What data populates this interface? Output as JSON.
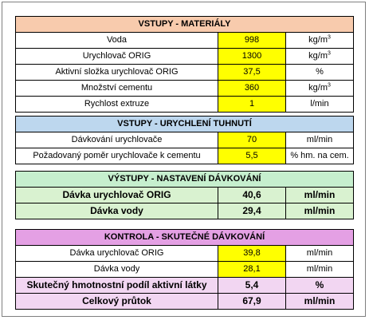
{
  "colors": {
    "vstupy_materialy_header": "#f8cbad",
    "vstupy_urychleni_header": "#bdd7ee",
    "vystupy_header": "#c6efce",
    "vystupy_rows": "#d9f2d0",
    "kontrola_header": "#e4a0e4",
    "kontrola_rows": "#f2d6f2",
    "input_cell": "#ffff00"
  },
  "materialy": {
    "title": "VSTUPY - MATERIÁLY",
    "rows": [
      {
        "label": "Voda",
        "value": "998",
        "unit_base": "kg/m",
        "unit_sup": "3"
      },
      {
        "label": "Urychlovač ORIG",
        "value": "1300",
        "unit_base": "kg/m",
        "unit_sup": "3"
      },
      {
        "label": "Aktivní složka urychlovač ORIG",
        "value": "37,5",
        "unit_base": "%",
        "unit_sup": ""
      },
      {
        "label": "Množství cementu",
        "value": "360",
        "unit_base": "kg/m",
        "unit_sup": "3"
      },
      {
        "label": "Rychlost extruze",
        "value": "1",
        "unit_base": "l/min",
        "unit_sup": ""
      }
    ]
  },
  "urychleni": {
    "title": "VSTUPY - URYCHLENÍ TUHNUTÍ",
    "rows": [
      {
        "label": "Dávkování urychlovače",
        "value": "70",
        "unit": "ml/min"
      },
      {
        "label": "Požadovaný poměr urychlovače k cementu",
        "value": "5,5",
        "unit": "% hm. na cem."
      }
    ]
  },
  "vystupy": {
    "title": "VÝSTUPY - NASTAVENÍ DÁVKOVÁNÍ",
    "rows": [
      {
        "label": "Dávka urychlovač ORIG",
        "value": "40,6",
        "unit": "ml/min"
      },
      {
        "label": "Dávka vody",
        "value": "29,4",
        "unit": "ml/min"
      }
    ]
  },
  "kontrola": {
    "title": "KONTROLA - SKUTEČNÉ DÁVKOVÁNÍ",
    "rows": [
      {
        "label": "Dávka urychlovač ORIG",
        "value": "39,8",
        "unit": "ml/min"
      },
      {
        "label": "Dávka vody",
        "value": "28,1",
        "unit": "ml/min"
      },
      {
        "label": "Skutečný hmotnostní podíl aktivní látky",
        "value": "5,4",
        "unit": "%"
      },
      {
        "label": "Celkový průtok",
        "value": "67,9",
        "unit": "ml/min"
      }
    ]
  }
}
